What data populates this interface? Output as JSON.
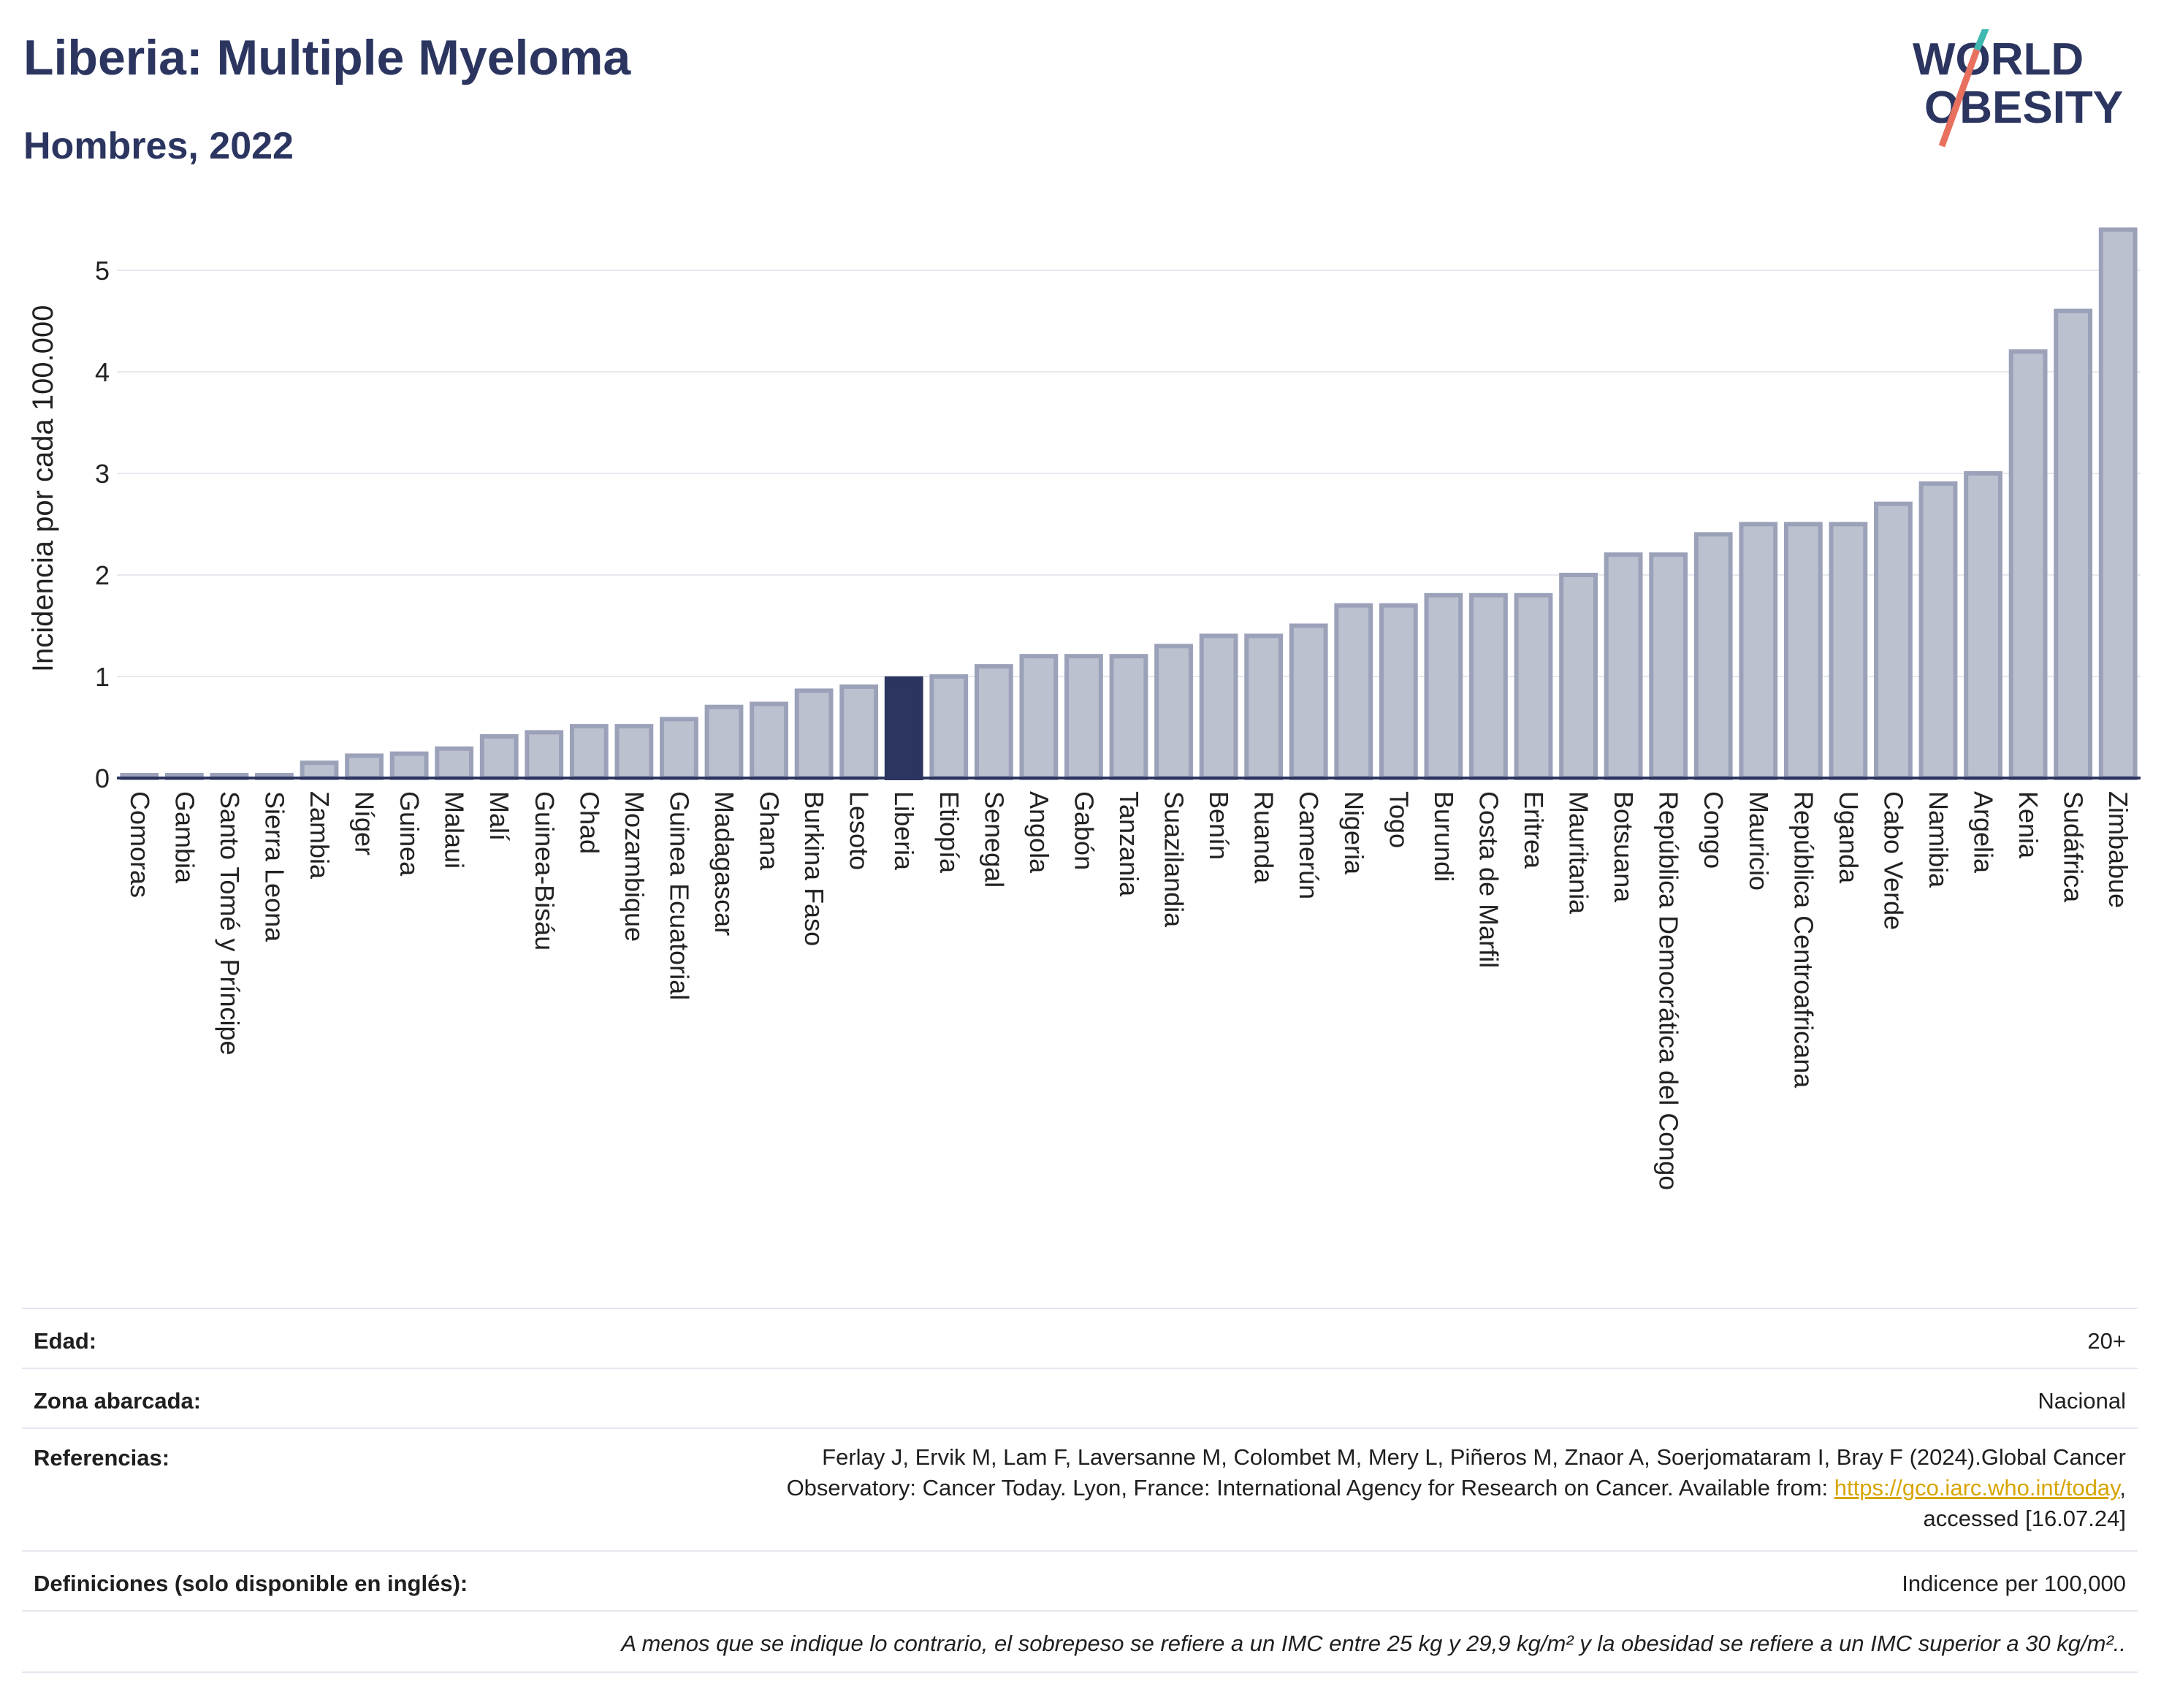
{
  "header": {
    "title": "Liberia: Multiple Myeloma",
    "subtitle": "Hombres, 2022",
    "logo_line1": "WORLD",
    "logo_line2": "OBESITY"
  },
  "chart_data": {
    "type": "bar",
    "ylabel": "Incidencia por cada 100.000",
    "ylim": [
      0,
      5.5
    ],
    "yticks": [
      0,
      1,
      2,
      3,
      4,
      5
    ],
    "highlight": "Liberia",
    "colors": {
      "bar": "#bcc1d0",
      "bar_stroke": "#9ba1b8",
      "highlight": "#2b3560",
      "axis": "#2b3560",
      "grid": "#e6e8ee"
    },
    "categories": [
      "Comoras",
      "Gambia",
      "Santo Tomé y Príncipe",
      "Sierra Leona",
      "Zambia",
      "Níger",
      "Guinea",
      "Malaui",
      "Malí",
      "Guinea-Bisáu",
      "Chad",
      "Mozambique",
      "Guinea Ecuatorial",
      "Madagascar",
      "Ghana",
      "Burkina Faso",
      "Lesoto",
      "Liberia",
      "Etiopía",
      "Senegal",
      "Angola",
      "Gabón",
      "Tanzania",
      "Suazilandia",
      "Benín",
      "Ruanda",
      "Camerún",
      "Nigeria",
      "Togo",
      "Burundi",
      "Costa de Marfil",
      "Eritrea",
      "Mauritania",
      "Botsuana",
      "República Democrática del Congo",
      "Congo",
      "Mauricio",
      "República Centroafricana",
      "Uganda",
      "Cabo Verde",
      "Namibia",
      "Argelia",
      "Kenia",
      "Sudáfrica",
      "Zimbabue"
    ],
    "values": [
      0.02,
      0.02,
      0.02,
      0.02,
      0.15,
      0.22,
      0.24,
      0.29,
      0.41,
      0.45,
      0.51,
      0.51,
      0.58,
      0.7,
      0.73,
      0.86,
      0.9,
      0.98,
      1.0,
      1.1,
      1.2,
      1.2,
      1.2,
      1.3,
      1.4,
      1.4,
      1.5,
      1.7,
      1.7,
      1.8,
      1.8,
      1.8,
      2.0,
      2.2,
      2.2,
      2.4,
      2.5,
      2.5,
      2.5,
      2.7,
      2.9,
      3.0,
      4.2,
      4.6,
      5.4
    ]
  },
  "info": {
    "age_label": "Edad:",
    "age_value": "20+",
    "area_label": "Zona abarcada:",
    "area_value": "Nacional",
    "ref_label": "Referencias:",
    "ref_line1": "Ferlay J, Ervik M, Lam F, Laversanne M, Colombet M, Mery L, Piñeros M, Znaor A, Soerjomataram I, Bray F (2024).Global Cancer",
    "ref_line2": "Observatory: Cancer Today. Lyon, France: International Agency for Research on Cancer. Available from: ",
    "ref_link": "https://gco.iarc.who.int/today",
    "ref_line2_end": ",",
    "ref_line3": "accessed [16.07.24]",
    "def_label": "Definiciones (solo disponible en inglés):",
    "def_value": "Indicence per 100,000",
    "note": "A menos que se indique lo contrario, el sobrepeso se refiere a un IMC entre 25 kg y 29,9 kg/m² y la obesidad se refiere a un IMC superior a 30 kg/m².."
  }
}
